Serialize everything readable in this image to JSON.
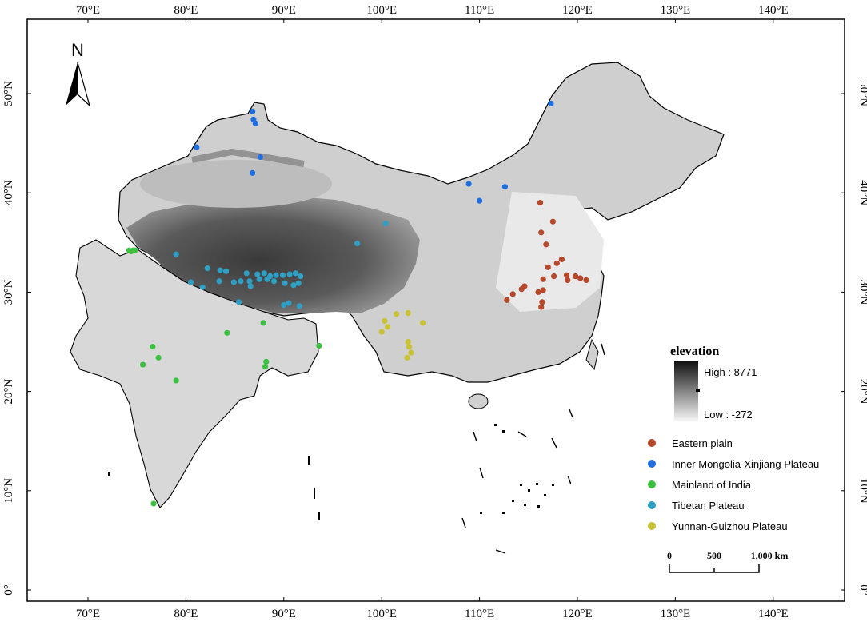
{
  "map": {
    "x_axis": {
      "labels": [
        "70°E",
        "80°E",
        "90°E",
        "100°E",
        "110°E",
        "120°E",
        "130°E",
        "140°E"
      ],
      "values": [
        70,
        80,
        90,
        100,
        110,
        120,
        130,
        140
      ]
    },
    "y_axis": {
      "labels": [
        "0°",
        "10°N",
        "20°N",
        "30°N",
        "40°N",
        "50°N"
      ],
      "values": [
        0,
        10,
        20,
        30,
        40,
        50
      ]
    },
    "extent": {
      "lon_min": 63,
      "lon_max": 145,
      "lat_min": -2,
      "lat_max": 57
    }
  },
  "north_arrow": {
    "label": "N"
  },
  "elevation_legend": {
    "title": "elevation",
    "high_label": "High : 8771",
    "low_label": "Low : -272",
    "high_color": "#111111",
    "low_color": "#f5f5f5"
  },
  "legend": {
    "items": [
      {
        "label": "Eastern plain",
        "color": "#b5472a"
      },
      {
        "label": "Inner Mongolia-Xinjiang Plateau",
        "color": "#1f6fe0"
      },
      {
        "label": "Mainland of India",
        "color": "#3cc040"
      },
      {
        "label": "Tibetan Plateau",
        "color": "#2f9fc4"
      },
      {
        "label": "Yunnan-Guizhou Plateau",
        "color": "#c9c234"
      }
    ]
  },
  "scale_bar": {
    "labels": [
      "0",
      "500",
      "1,000 km"
    ]
  },
  "sites": {
    "eastern_plain": [
      [
        116.2,
        39.0
      ],
      [
        117.5,
        37.1
      ],
      [
        116.3,
        36.0
      ],
      [
        116.8,
        34.8
      ],
      [
        118.4,
        33.3
      ],
      [
        117.9,
        32.9
      ],
      [
        117.0,
        32.5
      ],
      [
        117.6,
        31.6
      ],
      [
        116.5,
        31.3
      ],
      [
        119.0,
        31.2
      ],
      [
        118.9,
        31.7
      ],
      [
        119.8,
        31.6
      ],
      [
        120.3,
        31.4
      ],
      [
        120.9,
        31.2
      ],
      [
        116.0,
        30.0
      ],
      [
        116.5,
        30.2
      ],
      [
        114.6,
        30.6
      ],
      [
        114.3,
        30.3
      ],
      [
        113.4,
        29.8
      ],
      [
        112.8,
        29.2
      ],
      [
        116.4,
        29.0
      ],
      [
        116.3,
        28.5
      ]
    ],
    "inner_mongolia_xinjiang": [
      [
        117.3,
        49.0
      ],
      [
        86.8,
        48.2
      ],
      [
        86.9,
        47.4
      ],
      [
        87.1,
        47.0
      ],
      [
        81.1,
        44.6
      ],
      [
        87.6,
        43.6
      ],
      [
        86.8,
        42.0
      ],
      [
        108.9,
        40.9
      ],
      [
        112.6,
        40.6
      ],
      [
        110.0,
        39.2
      ]
    ],
    "mainland_india": [
      [
        74.2,
        34.2
      ],
      [
        74.4,
        34.1
      ],
      [
        74.6,
        34.2
      ],
      [
        74.8,
        34.2
      ],
      [
        84.2,
        25.9
      ],
      [
        87.9,
        26.9
      ],
      [
        93.6,
        24.6
      ],
      [
        76.6,
        24.5
      ],
      [
        77.2,
        23.4
      ],
      [
        75.6,
        22.7
      ],
      [
        88.2,
        23.0
      ],
      [
        88.1,
        22.5
      ],
      [
        79.0,
        21.1
      ],
      [
        76.7,
        8.7
      ]
    ],
    "tibetan_plateau": [
      [
        79.0,
        33.8
      ],
      [
        82.2,
        32.4
      ],
      [
        83.5,
        32.2
      ],
      [
        84.1,
        32.1
      ],
      [
        86.2,
        31.9
      ],
      [
        87.3,
        31.8
      ],
      [
        88.0,
        31.9
      ],
      [
        88.6,
        31.6
      ],
      [
        89.2,
        31.7
      ],
      [
        89.9,
        31.7
      ],
      [
        90.6,
        31.8
      ],
      [
        91.2,
        31.9
      ],
      [
        91.7,
        31.6
      ],
      [
        80.5,
        31.0
      ],
      [
        81.7,
        30.5
      ],
      [
        83.4,
        31.1
      ],
      [
        84.9,
        31.0
      ],
      [
        85.6,
        31.1
      ],
      [
        86.5,
        31.1
      ],
      [
        87.5,
        31.3
      ],
      [
        88.3,
        31.3
      ],
      [
        89.0,
        31.1
      ],
      [
        90.1,
        30.9
      ],
      [
        91.0,
        30.7
      ],
      [
        91.5,
        30.9
      ],
      [
        86.6,
        30.6
      ],
      [
        85.4,
        29.0
      ],
      [
        90.0,
        28.7
      ],
      [
        90.5,
        28.9
      ],
      [
        91.6,
        28.6
      ],
      [
        97.5,
        34.9
      ],
      [
        100.4,
        36.9
      ]
    ],
    "yunnan_guizhou": [
      [
        100.3,
        27.1
      ],
      [
        100.0,
        26.0
      ],
      [
        100.6,
        26.5
      ],
      [
        101.5,
        27.8
      ],
      [
        102.7,
        27.9
      ],
      [
        102.7,
        25.0
      ],
      [
        102.8,
        24.5
      ],
      [
        103.0,
        23.9
      ],
      [
        102.6,
        23.4
      ],
      [
        104.2,
        26.9
      ]
    ]
  }
}
